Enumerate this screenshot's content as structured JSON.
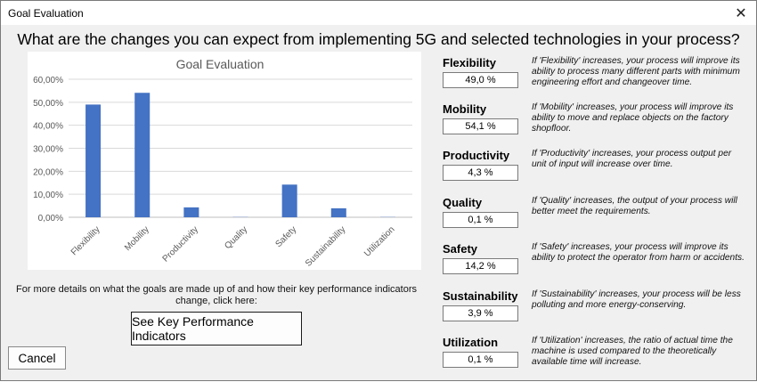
{
  "window": {
    "title": "Goal Evaluation",
    "close_glyph": "✕"
  },
  "heading": "What are the changes you can expect from implementing 5G and selected technologies in your process?",
  "chart_data": {
    "type": "bar",
    "title": "Goal Evaluation",
    "categories": [
      "Flexibility",
      "Mobility",
      "Productivity",
      "Quality",
      "Safety",
      "Sustainability",
      "Utilization"
    ],
    "values": [
      49.0,
      54.1,
      4.3,
      0.1,
      14.2,
      3.9,
      0.1
    ],
    "y_ticks": [
      "0,00%",
      "10,00%",
      "20,00%",
      "30,00%",
      "40,00%",
      "50,00%",
      "60,00%"
    ],
    "ylim": [
      0,
      60
    ],
    "grid": true,
    "bar_color": "#4472c4",
    "xlabel": "",
    "ylabel": ""
  },
  "details_text": "For more details on what the goals are made up of and how their key performance indicators change, click here:",
  "kpi_button_label": "See Key Performance Indicators",
  "cancel_label": "Cancel",
  "goals": [
    {
      "name": "Flexibility",
      "value": "49,0 %",
      "description": "If 'Flexibility' increases, your process will improve its ability to process many different parts with minimum engineering effort and changeover time."
    },
    {
      "name": "Mobility",
      "value": "54,1 %",
      "description": "If 'Mobility' increases, your process will improve its ability to move and replace objects on the factory shopfloor."
    },
    {
      "name": "Productivity",
      "value": "4,3 %",
      "description": "If 'Productivity' increases, your process output per unit of input will increase over time."
    },
    {
      "name": "Quality",
      "value": "0,1 %",
      "description": "If 'Quality' increases, the output of your process will better meet the requirements."
    },
    {
      "name": "Safety",
      "value": "14,2 %",
      "description": "If 'Safety' increases, your process will improve its ability to protect the operator from harm or accidents."
    },
    {
      "name": "Sustainability",
      "value": "3,9 %",
      "description": "If 'Sustainability' increases, your process will be less polluting and more energy-conserving."
    },
    {
      "name": "Utilization",
      "value": "0,1 %",
      "description": "If 'Utilization' increases, the ratio of actual time the machine is used compared to the theoretically available time will increase."
    }
  ]
}
